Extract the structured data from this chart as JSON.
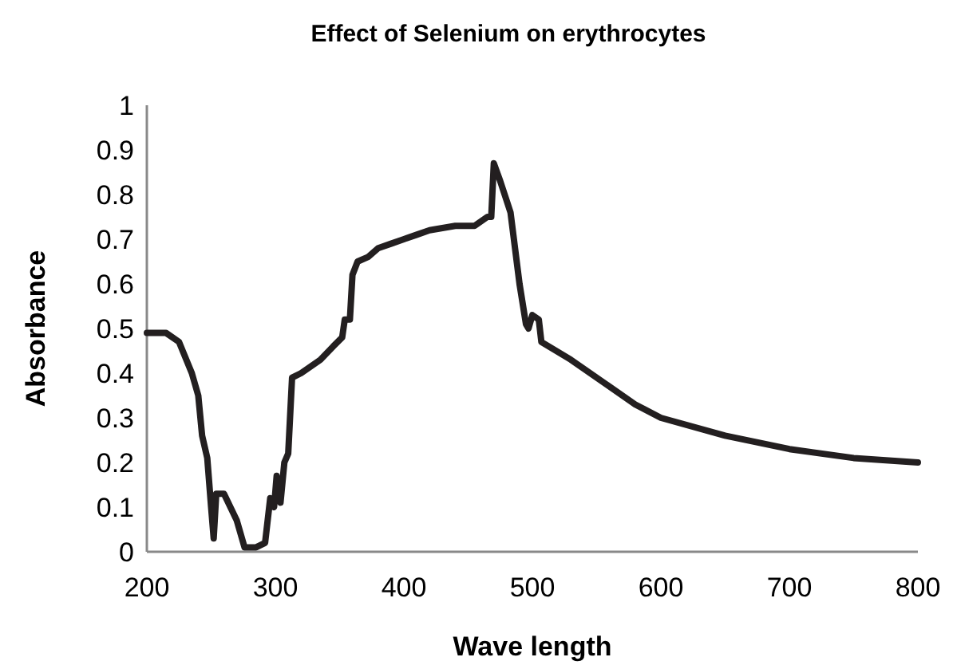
{
  "chart_data": {
    "type": "line",
    "title": "Effect of Selenium on erythrocytes",
    "xlabel": "Wave length",
    "ylabel": "Absorbance",
    "x": [
      200,
      215,
      225,
      235,
      240,
      243,
      247,
      250,
      252,
      254,
      260,
      265,
      270,
      273,
      276,
      285,
      292,
      296,
      299,
      301,
      304,
      307,
      310,
      313,
      320,
      335,
      345,
      352,
      354,
      358,
      360,
      364,
      372,
      380,
      390,
      400,
      410,
      420,
      440,
      455,
      465,
      468,
      470,
      475,
      483,
      490,
      495,
      497,
      500,
      505,
      507,
      530,
      560,
      580,
      600,
      650,
      700,
      750,
      800
    ],
    "series": [
      {
        "color": "#231f20",
        "values": [
          0.49,
          0.49,
          0.47,
          0.4,
          0.35,
          0.26,
          0.21,
          0.1,
          0.03,
          0.13,
          0.13,
          0.1,
          0.07,
          0.04,
          0.01,
          0.01,
          0.02,
          0.12,
          0.1,
          0.17,
          0.11,
          0.2,
          0.22,
          0.39,
          0.4,
          0.43,
          0.46,
          0.48,
          0.52,
          0.52,
          0.62,
          0.65,
          0.66,
          0.68,
          0.69,
          0.7,
          0.71,
          0.72,
          0.73,
          0.73,
          0.75,
          0.75,
          0.87,
          0.83,
          0.76,
          0.6,
          0.51,
          0.5,
          0.53,
          0.52,
          0.47,
          0.43,
          0.37,
          0.33,
          0.3,
          0.26,
          0.23,
          0.21,
          0.2
        ]
      }
    ],
    "xlim": [
      200,
      800
    ],
    "xticks": [
      200,
      300,
      400,
      500,
      600,
      700,
      800
    ],
    "ylim": [
      0,
      1
    ],
    "yticks": [
      0,
      0.1,
      0.2,
      0.3,
      0.4,
      0.5,
      0.6,
      0.7,
      0.8,
      0.9,
      1
    ],
    "marker": "none",
    "line_style": "solid"
  }
}
